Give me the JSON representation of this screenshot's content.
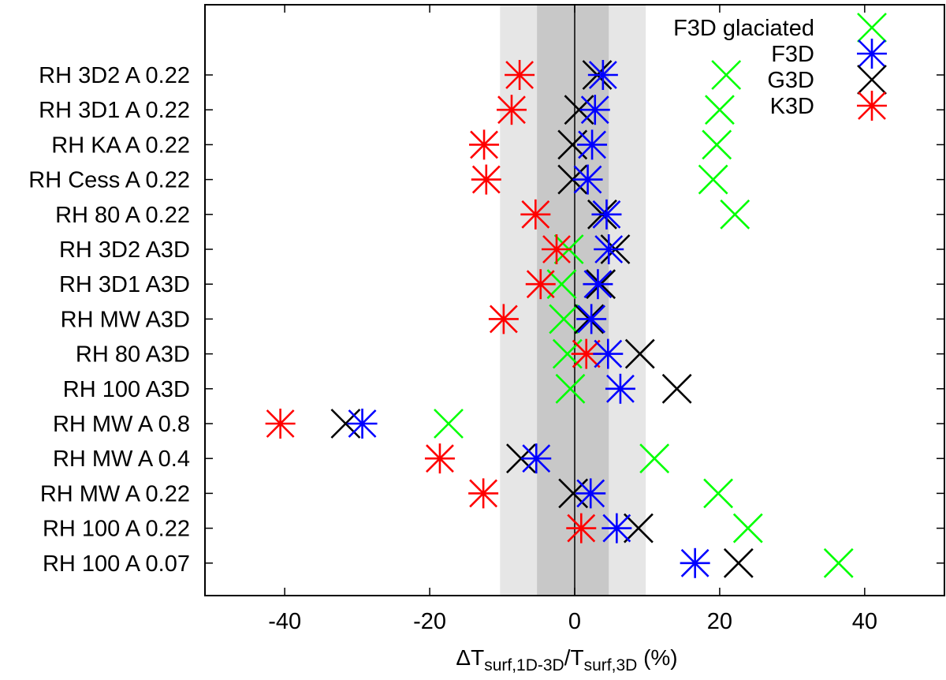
{
  "chart_data": {
    "type": "scatter",
    "orientation": "horizontal-categories",
    "title": "",
    "xlabel": {
      "prefix": "ΔT",
      "sub1": "surf,1D-3D",
      "mid": "/T",
      "sub2": "surf,3D",
      "suffix": " (%)"
    },
    "ylabel": "",
    "xlim": [
      -51,
      51
    ],
    "xticks": [
      -40,
      -20,
      0,
      20,
      40
    ],
    "xtick_labels": [
      "-40",
      "-20",
      "0",
      "20",
      "40"
    ],
    "reference_line": 0,
    "bands": [
      {
        "name": "outer-band",
        "range": [
          -10.3,
          9.8
        ],
        "color": "#e6e6e6"
      },
      {
        "name": "inner-band",
        "range": [
          -5.2,
          4.7
        ],
        "color": "#c8c8c8"
      }
    ],
    "categories": [
      "RH 3D2 A 0.22",
      "RH 3D1 A 0.22",
      "RH KA A 0.22",
      "RH Cess A 0.22",
      "RH 80 A 0.22",
      "RH 3D2 A3D",
      "RH 3D1 A3D",
      "RH MW A3D",
      "RH 80 A3D",
      "RH 100 A3D",
      "RH MW A 0.8",
      "RH MW A 0.4",
      "RH MW A 0.22",
      "RH 100 A 0.22",
      "RH 100 A 0.07"
    ],
    "series": [
      {
        "name": "F3D glaciated",
        "marker": "x",
        "color": "#00ff00",
        "values": [
          20.9,
          20.0,
          19.6,
          19.1,
          22.1,
          -0.8,
          -1.8,
          -1.5,
          -1.0,
          -0.6,
          -17.4,
          11.0,
          19.8,
          23.9,
          36.4
        ]
      },
      {
        "name": "F3D",
        "marker": "asterisk",
        "color": "#0000ff",
        "values": [
          3.9,
          2.8,
          2.4,
          1.8,
          4.4,
          4.7,
          3.2,
          2.3,
          4.6,
          6.3,
          -29.3,
          -5.3,
          2.2,
          5.8,
          16.6
        ]
      },
      {
        "name": "G3D",
        "marker": "x",
        "color": "#000000",
        "values": [
          3.1,
          0.6,
          -0.3,
          -0.3,
          3.8,
          5.6,
          3.6,
          2.0,
          9.0,
          14.1,
          -31.6,
          -7.4,
          -0.2,
          8.8,
          22.6
        ]
      },
      {
        "name": "K3D",
        "marker": "asterisk",
        "color": "#ff0000",
        "values": [
          -7.6,
          -8.7,
          -12.5,
          -12.2,
          -5.4,
          -2.5,
          -4.7,
          -9.8,
          1.6,
          null,
          -40.6,
          -18.6,
          -12.6,
          0.9,
          null
        ]
      }
    ],
    "legend_position": "top-right",
    "grid": false
  }
}
